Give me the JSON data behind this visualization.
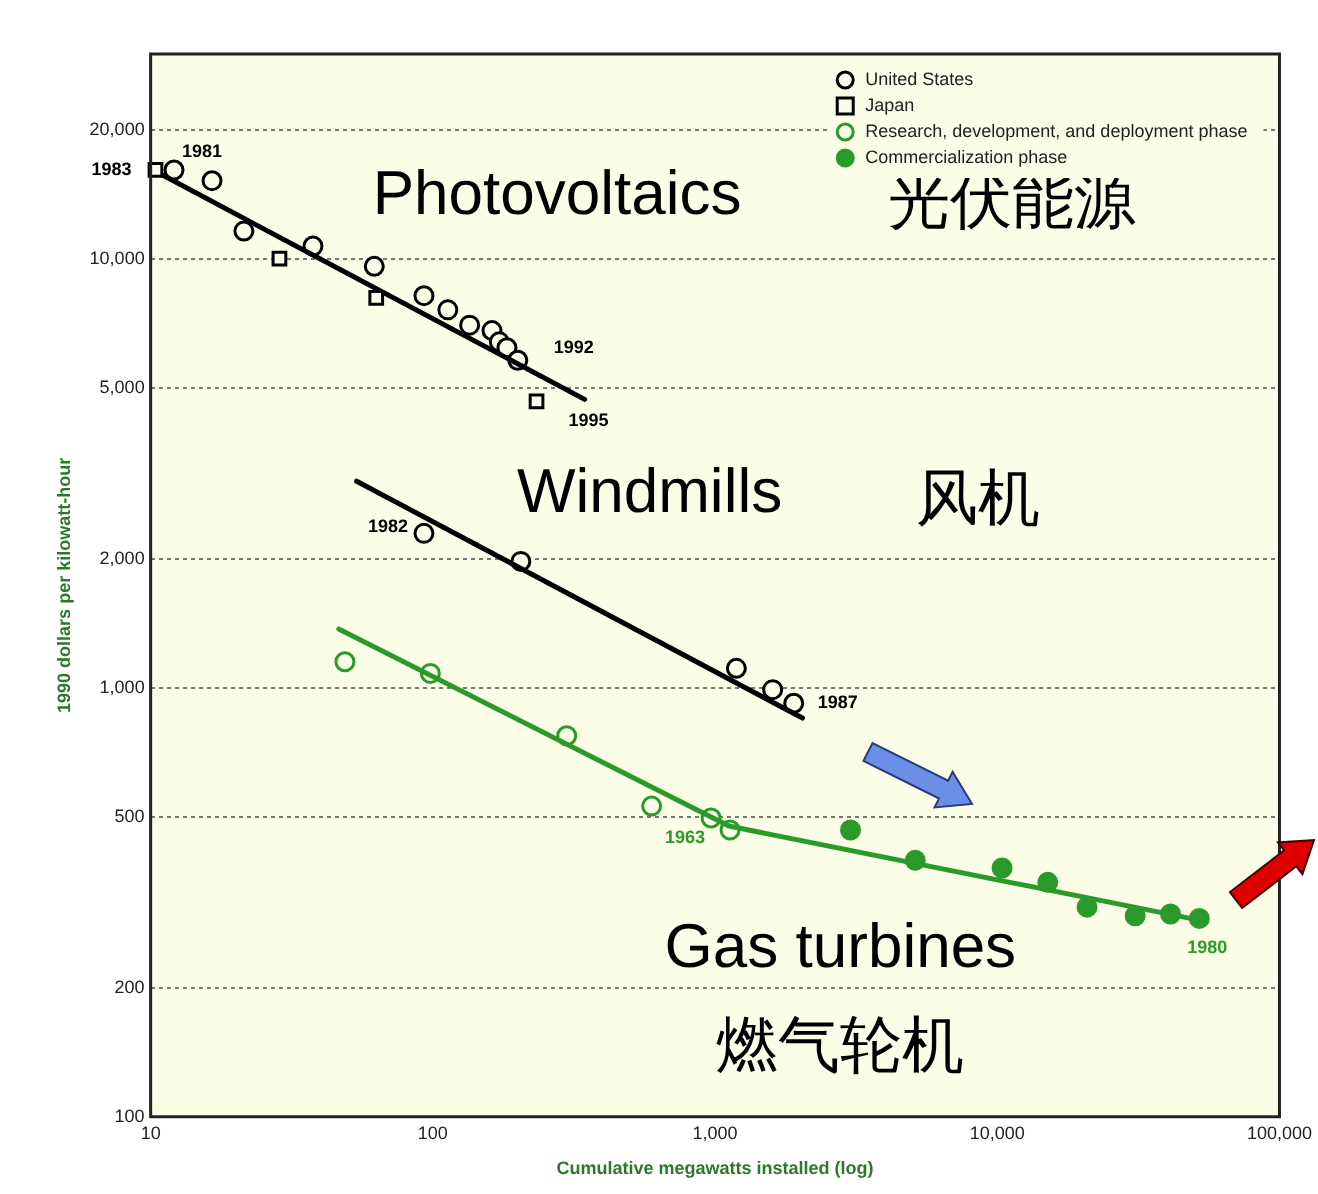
{
  "chart_data": {
    "type": "scatter",
    "xlabel": "Cumulative megawatts installed (log)",
    "ylabel": "1990 dollars per kilowatt-hour",
    "log": "xy",
    "xlim": [
      10,
      100000
    ],
    "xticks": [
      10,
      100,
      {
        "value": 1000,
        "label": "1,000"
      },
      {
        "value": 10000,
        "label": "10,000"
      },
      {
        "value": 100000,
        "label": "100,000"
      }
    ],
    "ylim": [
      100,
      30000
    ],
    "yticks": [
      100,
      200,
      500,
      {
        "value": 1000,
        "label": "1,000"
      },
      {
        "value": 2000,
        "label": "2,000"
      },
      {
        "value": 5000,
        "label": "5,000"
      },
      {
        "value": 10000,
        "label": "10,000"
      },
      {
        "value": 20000,
        "label": "20,000"
      }
    ],
    "grid": "y",
    "legend": "top right",
    "series": [
      {
        "type": "line",
        "color": "#000000",
        "marker": "none",
        "x": [
          10,
          345
        ],
        "values": [
          16200,
          4700
        ]
      },
      {
        "name": "United States",
        "color": "#000000",
        "marker": "circle",
        "x": [
          12.1,
          16.5,
          21.4,
          37.6,
          62,
          93,
          113,
          135,
          162,
          172,
          183,
          200
        ],
        "values": [
          16100,
          15200,
          11600,
          10700,
          9600,
          8200,
          7600,
          7000,
          6800,
          6400,
          6200,
          5800
        ]
      },
      {
        "name": "Japan",
        "color": "#000000",
        "marker": "square",
        "x": [
          10.4,
          28.6,
          63,
          233
        ],
        "values": [
          16100,
          10000,
          8100,
          4650
        ]
      },
      {
        "type": "line",
        "color": "#000000",
        "marker": "none",
        "x": [
          53.7,
          2040
        ],
        "values": [
          3030,
          850
        ]
      },
      {
        "color": "#000000",
        "marker": "circle",
        "x": [
          93,
          205,
          1190,
          1600,
          1900
        ],
        "values": [
          2290,
          1970,
          1110,
          990,
          920
        ]
      },
      {
        "type": "line",
        "color": "#2a9a2a",
        "marker": "none",
        "x": [
          46.4,
          1120,
          48300
        ],
        "values": [
          1370,
          476,
          290
        ]
      },
      {
        "name": "Research, development, and deployment phase",
        "color": "#2a9a2a",
        "marker": "circle",
        "x": [
          48.8,
          98,
          298,
          596,
          968,
          1130
        ],
        "values": [
          1150,
          1080,
          773,
          530,
          497,
          466
        ]
      },
      {
        "name": "Commercialization phase",
        "color": "#2a9a2a",
        "marker": "circle",
        "x": [
          3020,
          5120,
          10400,
          15100,
          20800,
          30800,
          41100,
          52000
        ],
        "values": [
          466,
          396,
          380,
          352,
          308,
          294,
          297,
          290
        ]
      }
    ],
    "annotations": [
      "Photovoltaics",
      "光伏能源",
      "Windmills",
      "风机",
      "Gas turbines",
      "燃气轮机",
      {
        "text": "1981",
        "x": 12.1,
        "y": 16100
      },
      {
        "text": "1983",
        "x": 10.4,
        "y": 16100
      },
      {
        "text": "1992",
        "x": 200,
        "y": 5800
      },
      {
        "text": "1995",
        "x": 233,
        "y": 4650
      },
      {
        "text": "1982",
        "x": 93,
        "y": 2290
      },
      {
        "text": "1987",
        "x": 1900,
        "y": 920
      },
      {
        "text": "1963",
        "x": 968,
        "y": 497
      },
      {
        "text": "1980",
        "x": 52000,
        "y": 290
      }
    ]
  }
}
